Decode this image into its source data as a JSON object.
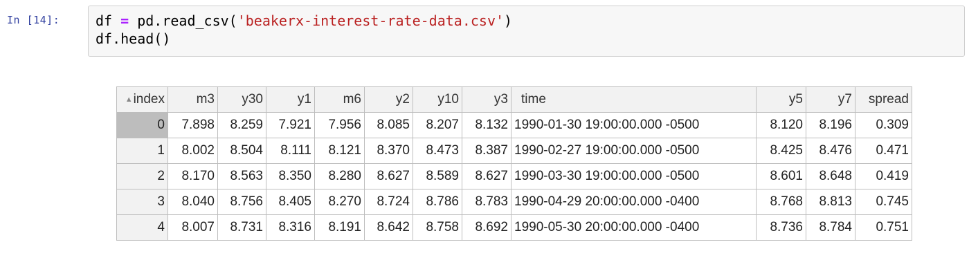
{
  "cell": {
    "prompt": "In [14]:",
    "code": {
      "line1": {
        "a": "df ",
        "op": "=",
        "b": " pd.read_csv(",
        "str": "'beakerx-interest-rate-data.csv'",
        "c": ")"
      },
      "line2": "df.head()"
    }
  },
  "table": {
    "columns": [
      "index",
      "m3",
      "y30",
      "y1",
      "m6",
      "y2",
      "y10",
      "y3",
      "time",
      "y5",
      "y7",
      "spread"
    ],
    "sort_icon": "▲",
    "rows": [
      [
        "0",
        "7.898",
        "8.259",
        "7.921",
        "7.956",
        "8.085",
        "8.207",
        "8.132",
        "1990-01-30 19:00:00.000 -0500",
        "8.120",
        "8.196",
        "0.309"
      ],
      [
        "1",
        "8.002",
        "8.504",
        "8.111",
        "8.121",
        "8.370",
        "8.473",
        "8.387",
        "1990-02-27 19:00:00.000 -0500",
        "8.425",
        "8.476",
        "0.471"
      ],
      [
        "2",
        "8.170",
        "8.563",
        "8.350",
        "8.280",
        "8.627",
        "8.589",
        "8.627",
        "1990-03-30 19:00:00.000 -0500",
        "8.601",
        "8.648",
        "0.419"
      ],
      [
        "3",
        "8.040",
        "8.756",
        "8.405",
        "8.270",
        "8.724",
        "8.786",
        "8.783",
        "1990-04-29 20:00:00.000 -0400",
        "8.768",
        "8.813",
        "0.745"
      ],
      [
        "4",
        "8.007",
        "8.731",
        "8.316",
        "8.191",
        "8.642",
        "8.758",
        "8.692",
        "1990-05-30 20:00:00.000 -0400",
        "8.736",
        "8.784",
        "0.751"
      ]
    ]
  }
}
